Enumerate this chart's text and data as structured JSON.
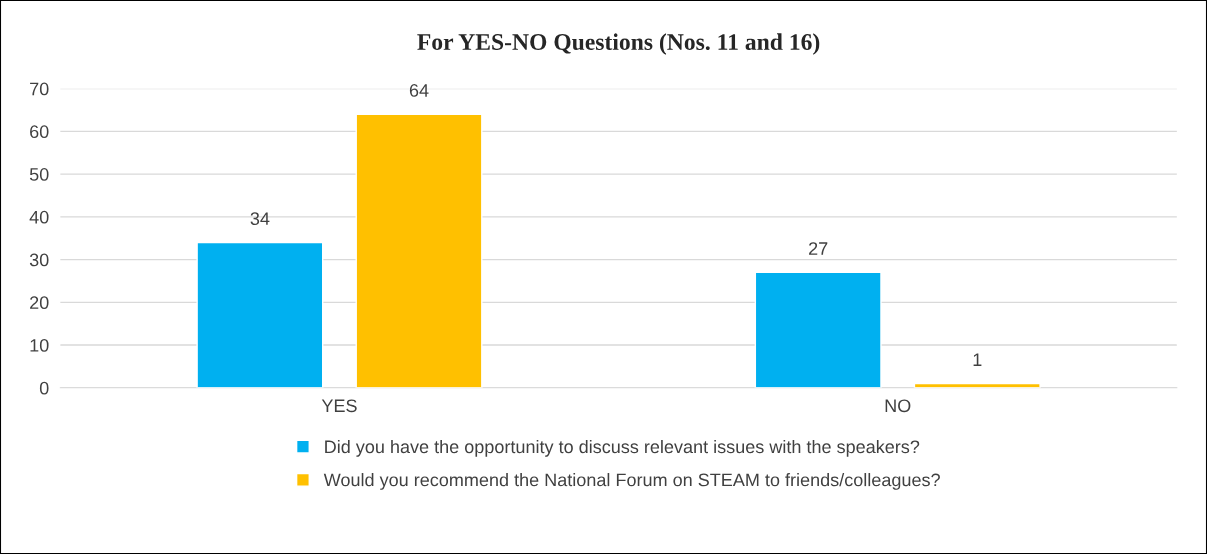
{
  "chart_data": {
    "type": "bar",
    "title": "For YES-NO Questions (Nos. 11 and 16)",
    "categories": [
      "YES",
      "NO"
    ],
    "series": [
      {
        "name": "Did you have the opportunity to discuss relevant issues with the speakers?",
        "color": "#00b0f0",
        "values": [
          34,
          27
        ]
      },
      {
        "name": "Would you recommend the National Forum on STEAM to friends/colleagues?",
        "color": "#ffc000",
        "values": [
          64,
          1
        ]
      }
    ],
    "ylim": [
      0,
      70
    ],
    "yticks": [
      0,
      10,
      20,
      30,
      40,
      50,
      60,
      70
    ],
    "grid": "y",
    "legend": "bottom",
    "data_labels": true
  }
}
